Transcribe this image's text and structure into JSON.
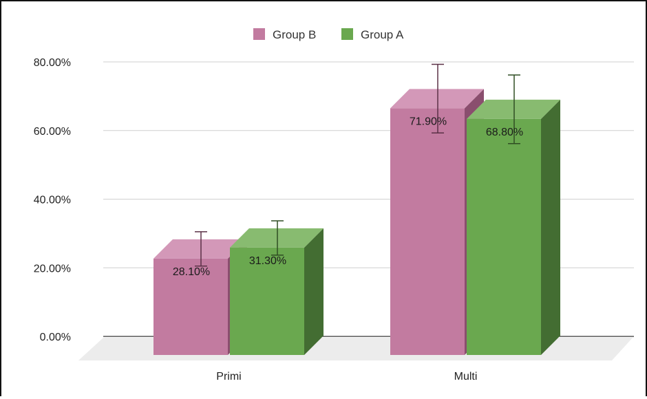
{
  "chart_data": {
    "type": "bar",
    "categories": [
      "Primi",
      "Multi"
    ],
    "series": [
      {
        "name": "Group B",
        "values": [
          28.1,
          71.9
        ],
        "labels": [
          "28.10%",
          "71.90%"
        ],
        "error": [
          5.0,
          10.0
        ],
        "color": "#c27ba0",
        "top_color": "#d398b8",
        "side_color": "#8a4e6e"
      },
      {
        "name": "Group A",
        "values": [
          31.3,
          68.8
        ],
        "labels": [
          "31.30%",
          "68.80%"
        ],
        "error": [
          5.0,
          10.0
        ],
        "color": "#6aa84f",
        "top_color": "#88bb70",
        "side_color": "#436d32"
      }
    ],
    "y_ticks": [
      "0.00%",
      "20.00%",
      "40.00%",
      "60.00%",
      "80.00%"
    ],
    "ylim": [
      0,
      80
    ],
    "grid": true,
    "legend": "top-center",
    "title": "",
    "xlabel": "",
    "ylabel": ""
  }
}
